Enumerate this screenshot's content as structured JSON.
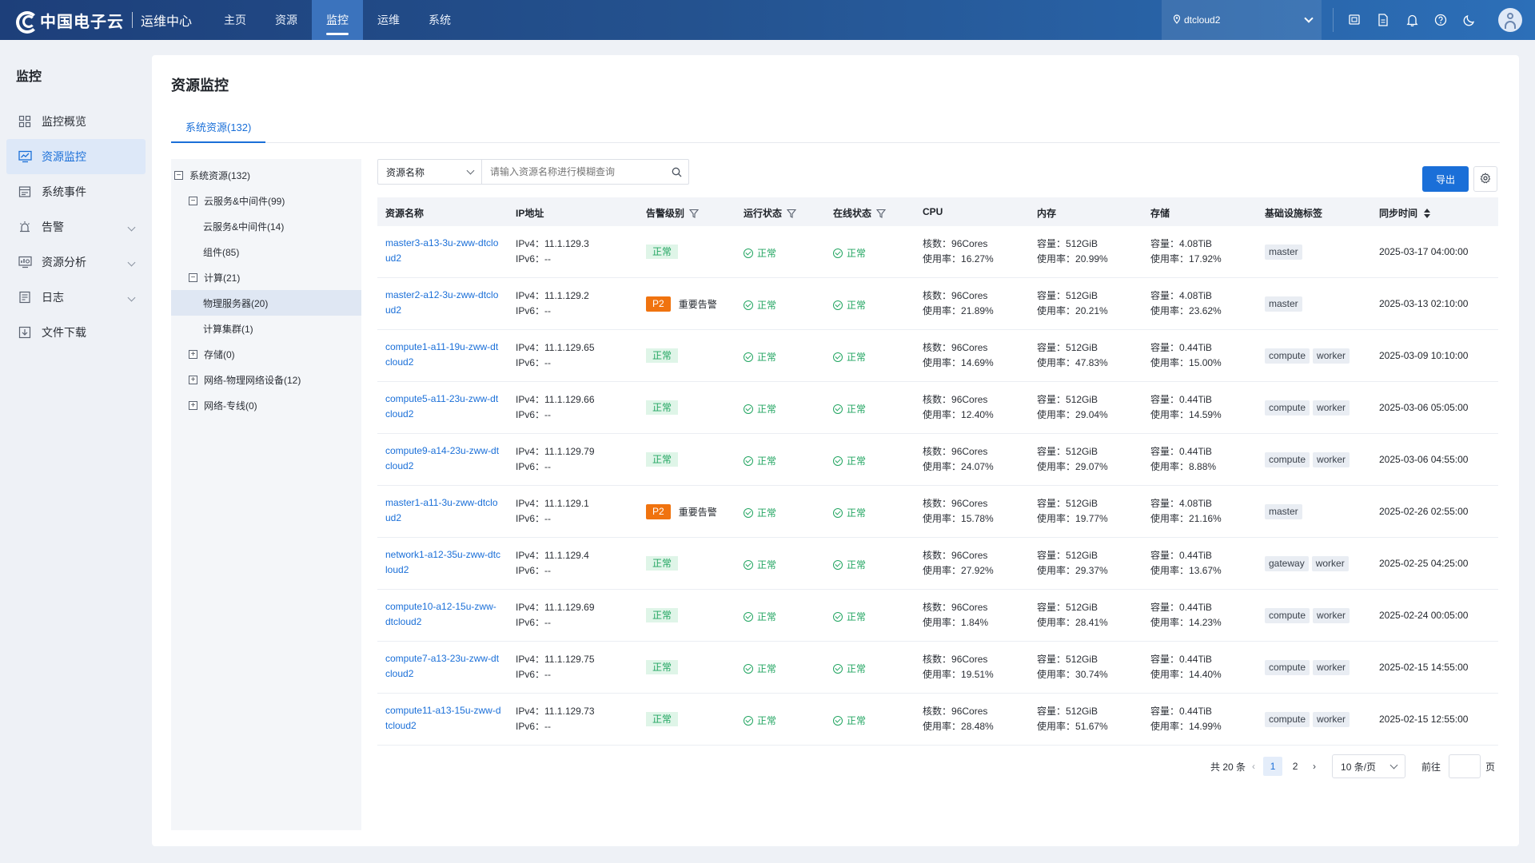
{
  "header": {
    "logo_text": "中国电子云",
    "logo_sub": "运维中心",
    "nav": [
      {
        "label": "主页",
        "active": false
      },
      {
        "label": "资源",
        "active": false
      },
      {
        "label": "监控",
        "active": true
      },
      {
        "label": "运维",
        "active": false
      },
      {
        "label": "系统",
        "active": false
      }
    ],
    "env": "dtcloud2",
    "icons": [
      "screen-icon",
      "document-icon",
      "bell-icon",
      "help-icon",
      "moon-icon",
      "user-avatar-icon"
    ]
  },
  "sidebar": {
    "title": "监控",
    "items": [
      {
        "label": "监控概览",
        "icon": "grid-icon",
        "active": false,
        "expandable": false
      },
      {
        "label": "资源监控",
        "icon": "monitor-chart-icon",
        "active": true,
        "expandable": false
      },
      {
        "label": "系统事件",
        "icon": "event-list-icon",
        "active": false,
        "expandable": false
      },
      {
        "label": "告警",
        "icon": "alarm-icon",
        "active": false,
        "expandable": true
      },
      {
        "label": "资源分析",
        "icon": "analysis-icon",
        "active": false,
        "expandable": true
      },
      {
        "label": "日志",
        "icon": "log-icon",
        "active": false,
        "expandable": true
      },
      {
        "label": "文件下载",
        "icon": "download-icon",
        "active": false,
        "expandable": false
      }
    ]
  },
  "page": {
    "title": "资源监控",
    "tab": "系统资源(132)"
  },
  "tree": [
    {
      "label": "系统资源(132)",
      "level": 0,
      "toggle": "−",
      "selected": false
    },
    {
      "label": "云服务&中间件(99)",
      "level": 1,
      "toggle": "−",
      "selected": false
    },
    {
      "label": "云服务&中间件(14)",
      "level": 2,
      "toggle": "",
      "selected": false
    },
    {
      "label": "组件(85)",
      "level": 2,
      "toggle": "",
      "selected": false
    },
    {
      "label": "计算(21)",
      "level": 1,
      "toggle": "−",
      "selected": false
    },
    {
      "label": "物理服务器(20)",
      "level": 2,
      "toggle": "",
      "selected": true
    },
    {
      "label": "计算集群(1)",
      "level": 2,
      "toggle": "",
      "selected": false
    },
    {
      "label": "存储(0)",
      "level": 1,
      "toggle": "+",
      "selected": false
    },
    {
      "label": "网络-物理网络设备(12)",
      "level": 1,
      "toggle": "+",
      "selected": false
    },
    {
      "label": "网络-专线(0)",
      "level": 1,
      "toggle": "+",
      "selected": false
    }
  ],
  "search": {
    "type": "资源名称",
    "placeholder": "请输入资源名称进行模糊查询"
  },
  "toolbar": {
    "export": "导出"
  },
  "table": {
    "columns": [
      "资源名称",
      "IP地址",
      "告警级别",
      "运行状态",
      "在线状态",
      "CPU",
      "内存",
      "存储",
      "基础设施标签",
      "同步时间"
    ],
    "ipv4_prefix": "IPv4：",
    "ipv6_prefix": "IPv6：",
    "cores_prefix": "核数：",
    "usage_prefix": "使用率：",
    "capacity_prefix": "容量：",
    "normal": "正常",
    "rows": [
      {
        "name": "master3-a13-3u-zww-dtcloud2",
        "ipv4": "11.1.129.3",
        "ipv6": "--",
        "alarm": "normal",
        "alarm_label": "正常",
        "alarm_text": "",
        "run": "正常",
        "online": "正常",
        "cpu_cores": "96Cores",
        "cpu_usage": "16.27%",
        "mem_cap": "512GiB",
        "mem_usage": "20.99%",
        "sto_cap": "4.08TiB",
        "sto_usage": "17.92%",
        "tags": [
          "master"
        ],
        "sync": "2025-03-17 04:00:00"
      },
      {
        "name": "master2-a12-3u-zww-dtcloud2",
        "ipv4": "11.1.129.2",
        "ipv6": "--",
        "alarm": "p2",
        "alarm_label": "P2",
        "alarm_text": "重要告警",
        "run": "正常",
        "online": "正常",
        "cpu_cores": "96Cores",
        "cpu_usage": "21.89%",
        "mem_cap": "512GiB",
        "mem_usage": "20.21%",
        "sto_cap": "4.08TiB",
        "sto_usage": "23.62%",
        "tags": [
          "master"
        ],
        "sync": "2025-03-13 02:10:00"
      },
      {
        "name": "compute1-a11-19u-zww-dtcloud2",
        "ipv4": "11.1.129.65",
        "ipv6": "--",
        "alarm": "normal",
        "alarm_label": "正常",
        "alarm_text": "",
        "run": "正常",
        "online": "正常",
        "cpu_cores": "96Cores",
        "cpu_usage": "14.69%",
        "mem_cap": "512GiB",
        "mem_usage": "47.83%",
        "sto_cap": "0.44TiB",
        "sto_usage": "15.00%",
        "tags": [
          "compute",
          "worker"
        ],
        "sync": "2025-03-09 10:10:00"
      },
      {
        "name": "compute5-a11-23u-zww-dtcloud2",
        "ipv4": "11.1.129.66",
        "ipv6": "--",
        "alarm": "normal",
        "alarm_label": "正常",
        "alarm_text": "",
        "run": "正常",
        "online": "正常",
        "cpu_cores": "96Cores",
        "cpu_usage": "12.40%",
        "mem_cap": "512GiB",
        "mem_usage": "29.04%",
        "sto_cap": "0.44TiB",
        "sto_usage": "14.59%",
        "tags": [
          "compute",
          "worker"
        ],
        "sync": "2025-03-06 05:05:00"
      },
      {
        "name": "compute9-a14-23u-zww-dtcloud2",
        "ipv4": "11.1.129.79",
        "ipv6": "--",
        "alarm": "normal",
        "alarm_label": "正常",
        "alarm_text": "",
        "run": "正常",
        "online": "正常",
        "cpu_cores": "96Cores",
        "cpu_usage": "24.07%",
        "mem_cap": "512GiB",
        "mem_usage": "29.07%",
        "sto_cap": "0.44TiB",
        "sto_usage": "8.88%",
        "tags": [
          "compute",
          "worker"
        ],
        "sync": "2025-03-06 04:55:00"
      },
      {
        "name": "master1-a11-3u-zww-dtcloud2",
        "ipv4": "11.1.129.1",
        "ipv6": "--",
        "alarm": "p2",
        "alarm_label": "P2",
        "alarm_text": "重要告警",
        "run": "正常",
        "online": "正常",
        "cpu_cores": "96Cores",
        "cpu_usage": "15.78%",
        "mem_cap": "512GiB",
        "mem_usage": "19.77%",
        "sto_cap": "4.08TiB",
        "sto_usage": "21.16%",
        "tags": [
          "master"
        ],
        "sync": "2025-02-26 02:55:00"
      },
      {
        "name": "network1-a12-35u-zww-dtcloud2",
        "ipv4": "11.1.129.4",
        "ipv6": "--",
        "alarm": "normal",
        "alarm_label": "正常",
        "alarm_text": "",
        "run": "正常",
        "online": "正常",
        "cpu_cores": "96Cores",
        "cpu_usage": "27.92%",
        "mem_cap": "512GiB",
        "mem_usage": "29.37%",
        "sto_cap": "0.44TiB",
        "sto_usage": "13.67%",
        "tags": [
          "gateway",
          "worker"
        ],
        "sync": "2025-02-25 04:25:00"
      },
      {
        "name": "compute10-a12-15u-zww-dtcloud2",
        "ipv4": "11.1.129.69",
        "ipv6": "--",
        "alarm": "normal",
        "alarm_label": "正常",
        "alarm_text": "",
        "run": "正常",
        "online": "正常",
        "cpu_cores": "96Cores",
        "cpu_usage": "1.84%",
        "mem_cap": "512GiB",
        "mem_usage": "28.41%",
        "sto_cap": "0.44TiB",
        "sto_usage": "14.23%",
        "tags": [
          "compute",
          "worker"
        ],
        "sync": "2025-02-24 00:05:00"
      },
      {
        "name": "compute7-a13-23u-zww-dtcloud2",
        "ipv4": "11.1.129.75",
        "ipv6": "--",
        "alarm": "normal",
        "alarm_label": "正常",
        "alarm_text": "",
        "run": "正常",
        "online": "正常",
        "cpu_cores": "96Cores",
        "cpu_usage": "19.51%",
        "mem_cap": "512GiB",
        "mem_usage": "30.74%",
        "sto_cap": "0.44TiB",
        "sto_usage": "14.40%",
        "tags": [
          "compute",
          "worker"
        ],
        "sync": "2025-02-15 14:55:00"
      },
      {
        "name": "compute11-a13-15u-zww-dtcloud2",
        "ipv4": "11.1.129.73",
        "ipv6": "--",
        "alarm": "normal",
        "alarm_label": "正常",
        "alarm_text": "",
        "run": "正常",
        "online": "正常",
        "cpu_cores": "96Cores",
        "cpu_usage": "28.48%",
        "mem_cap": "512GiB",
        "mem_usage": "51.67%",
        "sto_cap": "0.44TiB",
        "sto_usage": "14.99%",
        "tags": [
          "compute",
          "worker"
        ],
        "sync": "2025-02-15 12:55:00"
      }
    ]
  },
  "pagination": {
    "total": "共 20 条",
    "pages": [
      "1",
      "2"
    ],
    "current": "1",
    "page_size": "10 条/页",
    "goto_label": "前往",
    "page_suffix": "页"
  },
  "colors": {
    "brand": "#1a6fd8",
    "success": "#22a561",
    "p2": "#f0730f"
  }
}
